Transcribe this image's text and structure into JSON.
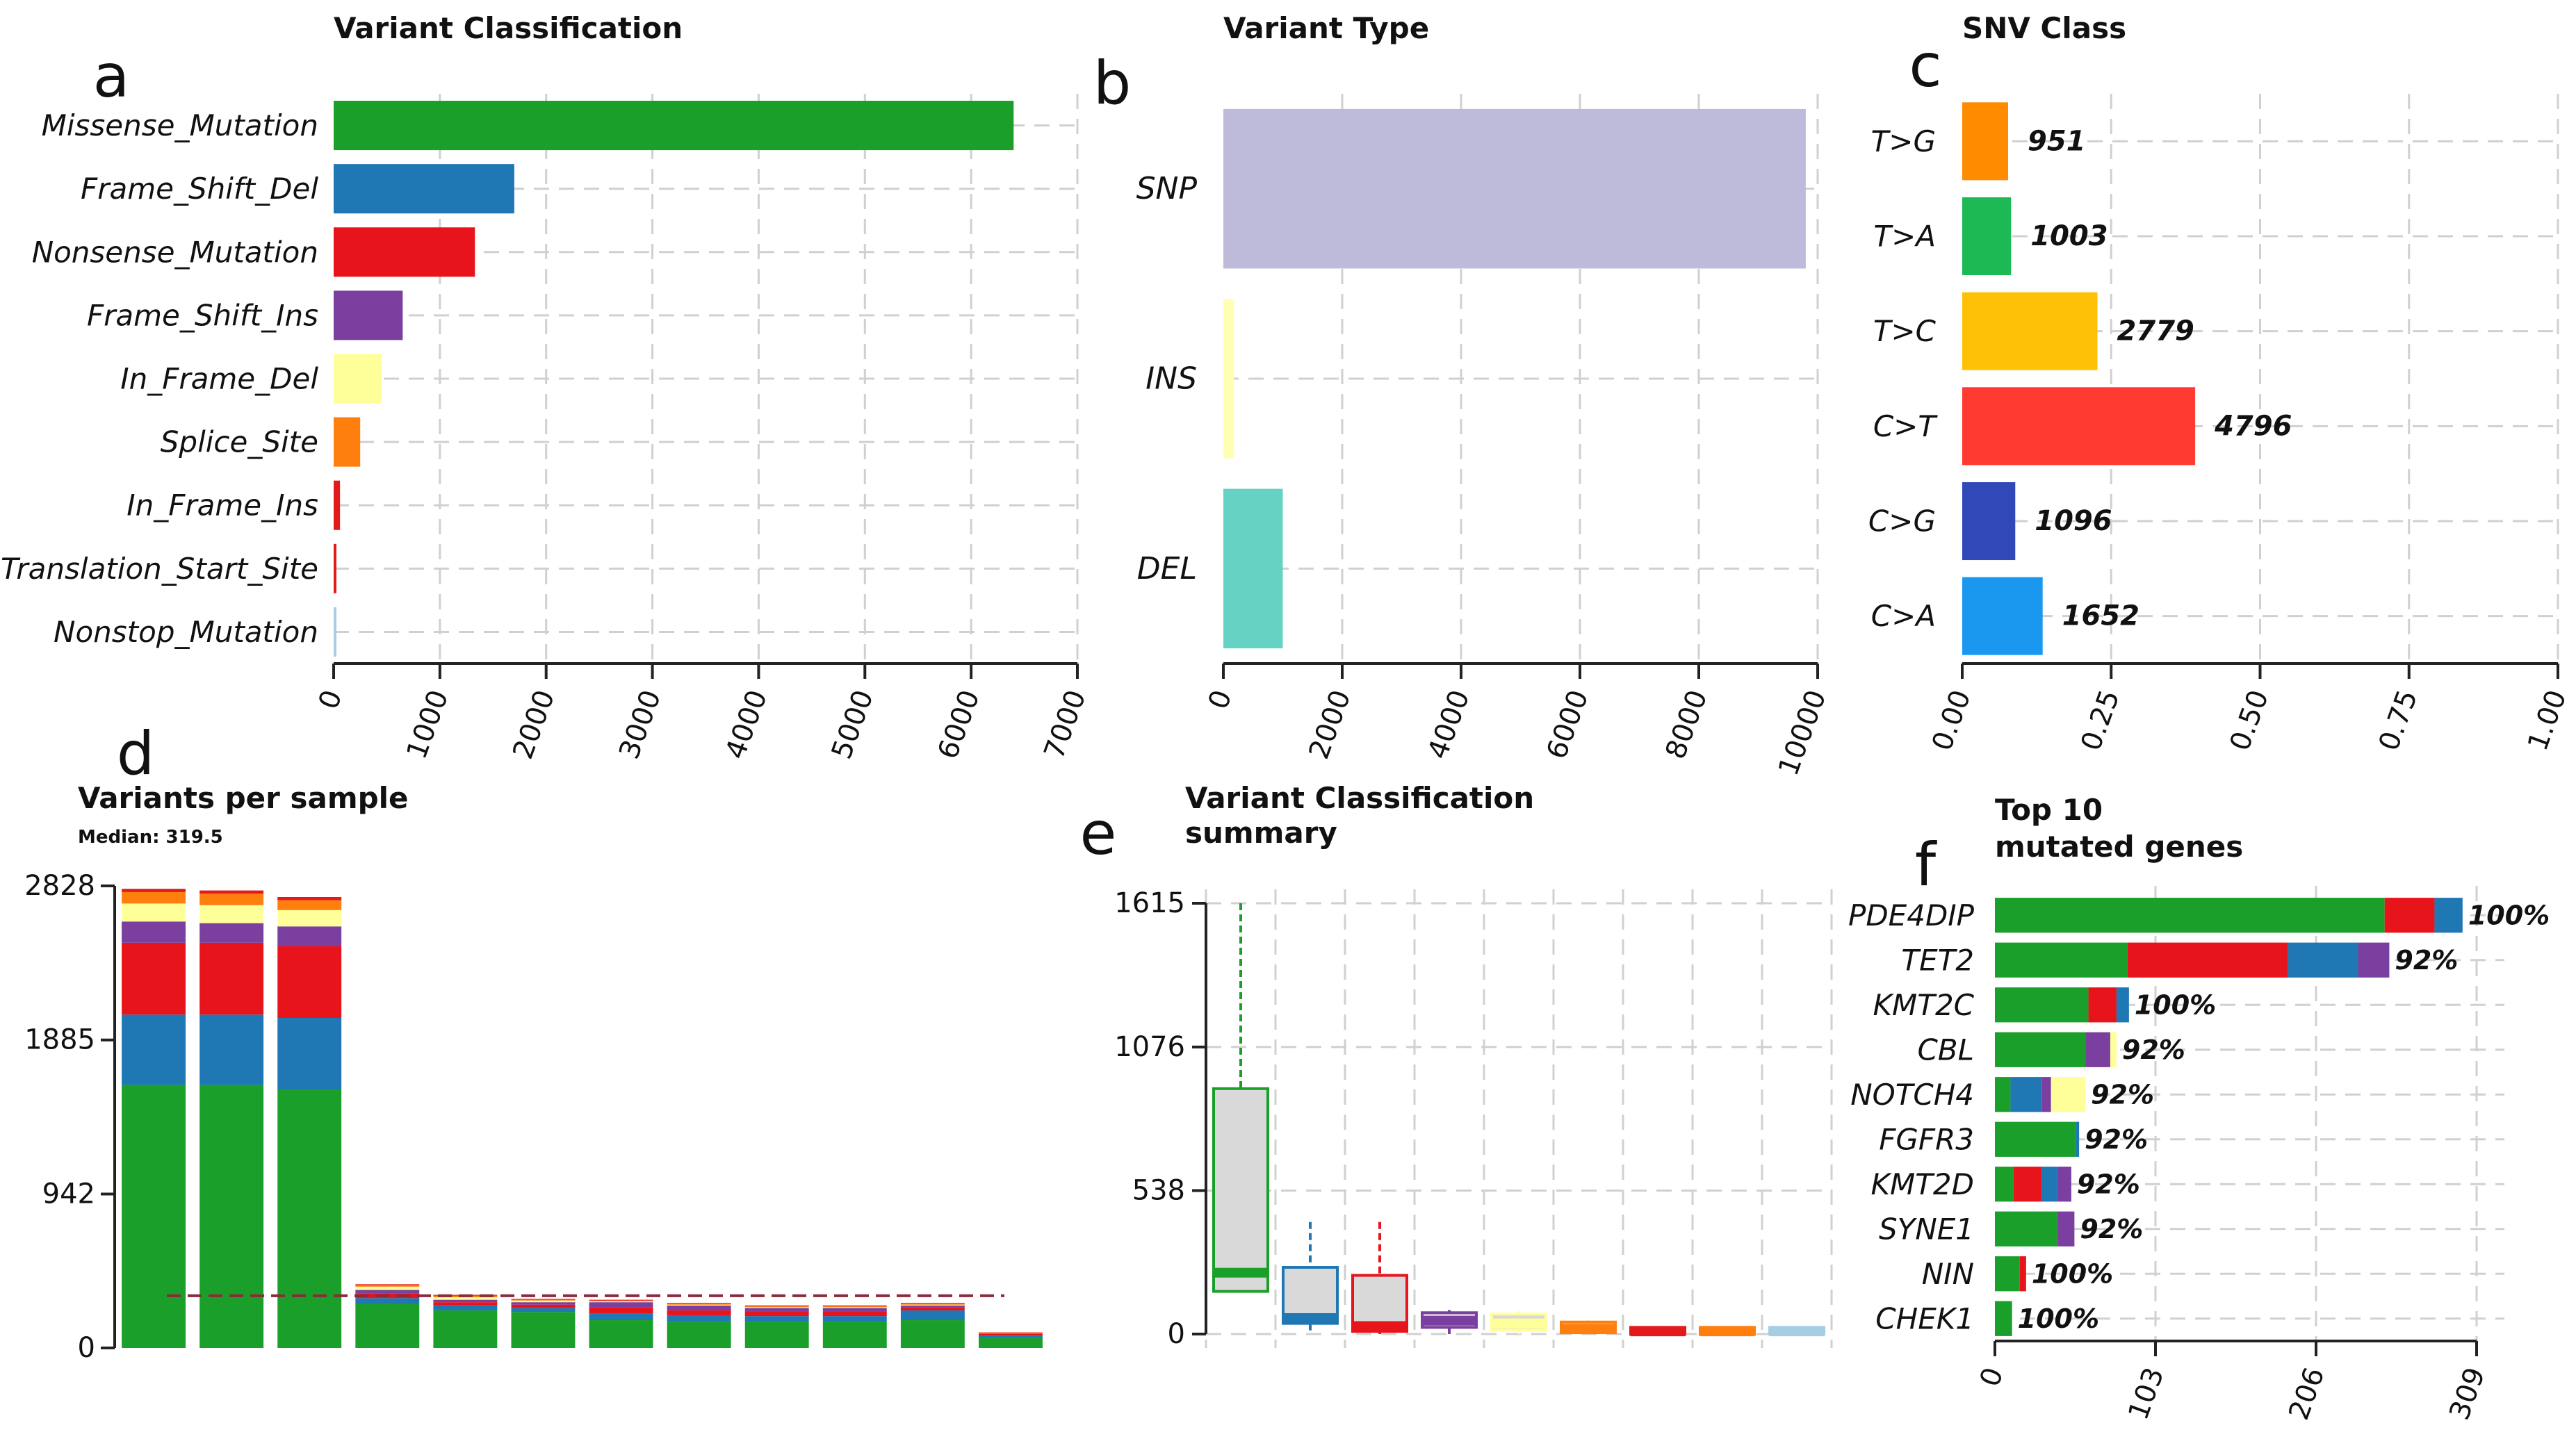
{
  "figure": {
    "background": "#ffffff"
  },
  "chart_data": [
    {
      "panel": "a",
      "type": "bar",
      "orientation": "horizontal",
      "title": "Variant Classification",
      "categories": [
        "Missense_Mutation",
        "Frame_Shift_Del",
        "Nonsense_Mutation",
        "Frame_Shift_Ins",
        "In_Frame_Del",
        "Splice_Site",
        "In_Frame_Ins",
        "Translation_Start_Site",
        "Nonstop_Mutation"
      ],
      "values": [
        6400,
        1700,
        1330,
        650,
        450,
        250,
        60,
        20,
        15
      ],
      "colors": [
        "#1aa02a",
        "#1f77b4",
        "#e8141c",
        "#7b3fa0",
        "#ffff99",
        "#ff7f0e",
        "#e31a1c",
        "#e31a1c",
        "#a6cee3"
      ],
      "xlim": [
        0,
        7000
      ],
      "xticks": [
        "0",
        "1000",
        "2000",
        "3000",
        "4000",
        "5000",
        "6000",
        "7000"
      ],
      "grid": true
    },
    {
      "panel": "b",
      "type": "bar",
      "orientation": "horizontal",
      "title": "Variant Type",
      "categories": [
        "SNP",
        "INS",
        "DEL"
      ],
      "values": [
        9800,
        180,
        1000
      ],
      "colors": [
        "#bebada",
        "#ffffb3",
        "#66d2c4"
      ],
      "xlim": [
        0,
        10000
      ],
      "xticks": [
        "0",
        "2000",
        "4000",
        "6000",
        "8000",
        "10000"
      ],
      "grid": true
    },
    {
      "panel": "c",
      "type": "bar",
      "orientation": "horizontal",
      "title": "SNV Class",
      "categories": [
        "T>G",
        "T>A",
        "T>C",
        "C>T",
        "C>G",
        "C>A"
      ],
      "counts": [
        951,
        1003,
        2779,
        4796,
        1096,
        1652
      ],
      "count_labels": [
        "951",
        "1003",
        "2779",
        "4796",
        "1096",
        "1652"
      ],
      "values": [
        0.077,
        0.082,
        0.227,
        0.391,
        0.089,
        0.135
      ],
      "colors": [
        "#ff8c00",
        "#1db954",
        "#ffc107",
        "#ff3a30",
        "#3048b8",
        "#1a98f0"
      ],
      "xlim": [
        0,
        1
      ],
      "xticks": [
        "0.00",
        "0.25",
        "0.50",
        "0.75",
        "1.00"
      ],
      "grid": true
    },
    {
      "panel": "d",
      "type": "bar",
      "stacked": true,
      "title": "Variants per sample",
      "subtitle": "Median: 319.5",
      "median": 319.5,
      "ylim": [
        0,
        2828
      ],
      "yticks": [
        "0",
        "942",
        "1885",
        "2828"
      ],
      "segment_colors": [
        "#1aa02a",
        "#1f77b4",
        "#e8141c",
        "#7b3fa0",
        "#ffff99",
        "#ff7f0e",
        "#e31a1c"
      ],
      "series": [
        {
          "name": "Missense_Mutation",
          "values": [
            1610,
            1610,
            1580,
            270,
            230,
            220,
            170,
            160,
            160,
            160,
            170,
            60
          ]
        },
        {
          "name": "Frame_Shift_Del",
          "values": [
            430,
            430,
            440,
            35,
            30,
            25,
            40,
            40,
            35,
            35,
            60,
            15
          ]
        },
        {
          "name": "Nonsense_Mutation",
          "values": [
            440,
            440,
            440,
            30,
            20,
            20,
            40,
            30,
            30,
            30,
            20,
            10
          ]
        },
        {
          "name": "Frame_Shift_Ins",
          "values": [
            130,
            120,
            120,
            20,
            15,
            15,
            30,
            30,
            20,
            20,
            10,
            5
          ]
        },
        {
          "name": "In_Frame_Del",
          "values": [
            110,
            110,
            100,
            20,
            15,
            10,
            5,
            5,
            5,
            5,
            5,
            3
          ]
        },
        {
          "name": "Splice_Site",
          "values": [
            70,
            70,
            60,
            10,
            10,
            5,
            5,
            5,
            5,
            5,
            5,
            2
          ]
        },
        {
          "name": "In_Frame_Ins",
          "values": [
            20,
            20,
            20,
            5,
            5,
            5,
            5,
            5,
            5,
            5,
            5,
            2
          ]
        }
      ],
      "grid": false
    },
    {
      "panel": "e",
      "type": "box",
      "title": "Variant Classification",
      "title_line2": "summary",
      "ylim": [
        0,
        1615
      ],
      "yticks": [
        "0",
        "538",
        "1076",
        "1615"
      ],
      "boxes": [
        {
          "name": "Missense_Mutation",
          "color": "#1aa02a",
          "min": 160,
          "q1": 160,
          "median": 230,
          "q3": 920,
          "max": 1615
        },
        {
          "name": "Frame_Shift_Del",
          "color": "#1f77b4",
          "min": 0,
          "q1": 40,
          "median": 60,
          "q3": 250,
          "max": 420
        },
        {
          "name": "Nonsense_Mutation",
          "color": "#e8141c",
          "min": 0,
          "q1": 10,
          "median": 30,
          "q3": 220,
          "max": 420
        },
        {
          "name": "Frame_Shift_Ins",
          "color": "#7b3fa0",
          "min": 0,
          "q1": 25,
          "median": 50,
          "q3": 80,
          "max": 90
        },
        {
          "name": "In_Frame_Del",
          "color": "#ffff99",
          "min": 0,
          "q1": 15,
          "median": 40,
          "q3": 75,
          "max": 85
        },
        {
          "name": "Splice_Site",
          "color": "#ff7f0e",
          "min": 0,
          "q1": 5,
          "median": 20,
          "q3": 45,
          "max": 50
        },
        {
          "name": "In_Frame_Ins",
          "color": "#e31a1c",
          "min": 0,
          "q1": 2,
          "median": 10,
          "q3": 25,
          "max": 30
        },
        {
          "name": "Translation_Start_Site",
          "color": "#ff7f0e",
          "min": 0,
          "q1": 2,
          "median": 10,
          "q3": 25,
          "max": 30
        },
        {
          "name": "Nonstop_Mutation",
          "color": "#a6cee3",
          "min": 0,
          "q1": 2,
          "median": 10,
          "q3": 25,
          "max": 30
        }
      ],
      "grid": true
    },
    {
      "panel": "f",
      "type": "bar",
      "orientation": "horizontal",
      "stacked": true,
      "title": "Top 10",
      "title_line2": "mutated genes",
      "xlim": [
        0,
        309
      ],
      "xticks": [
        "0",
        "103",
        "206",
        "309"
      ],
      "genes": [
        {
          "name": "PDE4DIP",
          "pct": "100%",
          "segments": [
            {
              "color": "#1aa02a",
              "value": 250
            },
            {
              "color": "#e8141c",
              "value": 32
            },
            {
              "color": "#1f77b4",
              "value": 18
            }
          ]
        },
        {
          "name": "TET2",
          "pct": "92%",
          "segments": [
            {
              "color": "#1aa02a",
              "value": 85
            },
            {
              "color": "#e8141c",
              "value": 103
            },
            {
              "color": "#1f77b4",
              "value": 45
            },
            {
              "color": "#7b3fa0",
              "value": 20
            }
          ]
        },
        {
          "name": "KMT2C",
          "pct": "100%",
          "segments": [
            {
              "color": "#1aa02a",
              "value": 60
            },
            {
              "color": "#e8141c",
              "value": 18
            },
            {
              "color": "#1f77b4",
              "value": 8
            }
          ]
        },
        {
          "name": "CBL",
          "pct": "92%",
          "segments": [
            {
              "color": "#1aa02a",
              "value": 58
            },
            {
              "color": "#7b3fa0",
              "value": 16
            },
            {
              "color": "#ffff99",
              "value": 4
            }
          ]
        },
        {
          "name": "NOTCH4",
          "pct": "92%",
          "segments": [
            {
              "color": "#1aa02a",
              "value": 10
            },
            {
              "color": "#1f77b4",
              "value": 20
            },
            {
              "color": "#7b3fa0",
              "value": 6
            },
            {
              "color": "#ffff99",
              "value": 22
            }
          ]
        },
        {
          "name": "FGFR3",
          "pct": "92%",
          "segments": [
            {
              "color": "#1aa02a",
              "value": 52
            },
            {
              "color": "#1f77b4",
              "value": 2
            }
          ]
        },
        {
          "name": "KMT2D",
          "pct": "92%",
          "segments": [
            {
              "color": "#1aa02a",
              "value": 12
            },
            {
              "color": "#e8141c",
              "value": 18
            },
            {
              "color": "#1f77b4",
              "value": 10
            },
            {
              "color": "#7b3fa0",
              "value": 9
            }
          ]
        },
        {
          "name": "SYNE1",
          "pct": "92%",
          "segments": [
            {
              "color": "#1aa02a",
              "value": 40
            },
            {
              "color": "#7b3fa0",
              "value": 11
            }
          ]
        },
        {
          "name": "NIN",
          "pct": "100%",
          "segments": [
            {
              "color": "#1aa02a",
              "value": 16
            },
            {
              "color": "#e8141c",
              "value": 4
            }
          ]
        },
        {
          "name": "CHEK1",
          "pct": "100%",
          "segments": [
            {
              "color": "#1aa02a",
              "value": 11
            }
          ]
        }
      ],
      "grid": true
    }
  ]
}
